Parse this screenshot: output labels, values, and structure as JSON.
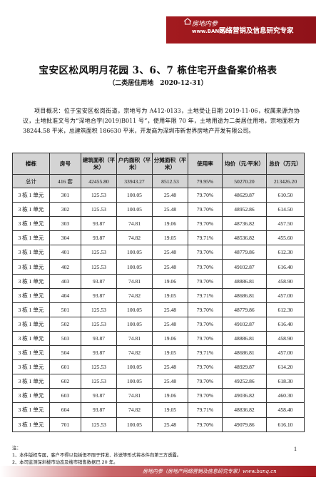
{
  "header": {
    "logo_cn": "房地内参",
    "logo_url": "www.BANQ.cn",
    "tagline": "网络营销及信息研究专家"
  },
  "document": {
    "title": "宝安区松风明月花园 3、6、7 栋住宅开盘备案价格表",
    "subtitle": "（二类居住用地　2020-12-31）",
    "overview": "项目概况：位于宝安区松岗街道，宗地号为 A412-0133，土地受让日期 2019-11-06，权属来源为协议，土地批准文号为“深地合字(2019)B011 号”，使用年限 70 年，土地用途为二类居住用地，宗地面积为 38244.58 平米，总建筑面积 186630 平米，开发商为深圳市新世界房地产开发有限公司。"
  },
  "table": {
    "headers": [
      "楼栋",
      "房号",
      "建筑面积（平米）",
      "户内面积（平米）",
      "分摊面积（平米）",
      "使用率",
      "均价（元/平米）",
      "总价（万元）"
    ],
    "total": [
      "总计",
      "416 套",
      "42455.80",
      "33943.27",
      "8512.53",
      "79.95%",
      "50270.20",
      "213426.20"
    ],
    "rows": [
      [
        "3 栋 1 单元",
        "301",
        "125.53",
        "100.05",
        "25.48",
        "79.70%",
        "48629.87",
        "610.50"
      ],
      [
        "3 栋 1 单元",
        "302",
        "125.53",
        "100.05",
        "25.48",
        "79.70%",
        "48952.86",
        "614.50"
      ],
      [
        "3 栋 1 单元",
        "303",
        "93.87",
        "74.81",
        "19.06",
        "79.70%",
        "48736.82",
        "457.50"
      ],
      [
        "3 栋 1 单元",
        "304",
        "93.87",
        "74.82",
        "19.05",
        "79.71%",
        "48536.82",
        "455.60"
      ],
      [
        "3 栋 1 单元",
        "401",
        "125.53",
        "100.05",
        "25.48",
        "79.70%",
        "48779.86",
        "612.30"
      ],
      [
        "3 栋 1 单元",
        "402",
        "125.53",
        "100.05",
        "25.48",
        "79.70%",
        "49102.87",
        "616.40"
      ],
      [
        "3 栋 1 单元",
        "403",
        "93.87",
        "74.81",
        "19.06",
        "79.70%",
        "48886.81",
        "458.90"
      ],
      [
        "3 栋 1 单元",
        "404",
        "93.87",
        "74.82",
        "19.05",
        "79.71%",
        "48686.81",
        "457.00"
      ],
      [
        "3 栋 1 单元",
        "501",
        "125.53",
        "100.05",
        "25.48",
        "79.70%",
        "48779.86",
        "612.30"
      ],
      [
        "3 栋 1 单元",
        "502",
        "125.53",
        "100.05",
        "25.48",
        "79.70%",
        "49102.87",
        "616.40"
      ],
      [
        "3 栋 1 单元",
        "503",
        "93.87",
        "74.81",
        "19.06",
        "79.70%",
        "48886.81",
        "458.90"
      ],
      [
        "3 栋 1 单元",
        "504",
        "93.87",
        "74.82",
        "19.05",
        "79.71%",
        "48686.81",
        "457.00"
      ],
      [
        "3 栋 1 单元",
        "601",
        "125.53",
        "100.05",
        "25.48",
        "79.70%",
        "48929.87",
        "614.20"
      ],
      [
        "3 栋 1 单元",
        "602",
        "125.53",
        "100.05",
        "25.48",
        "79.70%",
        "49252.86",
        "618.30"
      ],
      [
        "3 栋 1 单元",
        "603",
        "93.87",
        "74.81",
        "19.06",
        "79.70%",
        "49036.82",
        "460.30"
      ],
      [
        "3 栋 1 单元",
        "604",
        "93.87",
        "74.82",
        "19.05",
        "79.71%",
        "48836.82",
        "458.40"
      ],
      [
        "3 栋 1 单元",
        "701",
        "125.53",
        "100.05",
        "25.48",
        "79.70%",
        "49079.86",
        "616.10"
      ]
    ]
  },
  "footer": {
    "page_number": "1",
    "notes_label": "注：",
    "note_1": "1、本件版权专属，客户不得以包括但不限于转发、抄送等形式将本件向第三方透露。",
    "note_2": "2、本司监测深圳楼市动态及楼市销售数据已 20 年。",
    "bar_text": "房地内参（房地产网络营销及信息研究专家）www.banq.cn"
  }
}
